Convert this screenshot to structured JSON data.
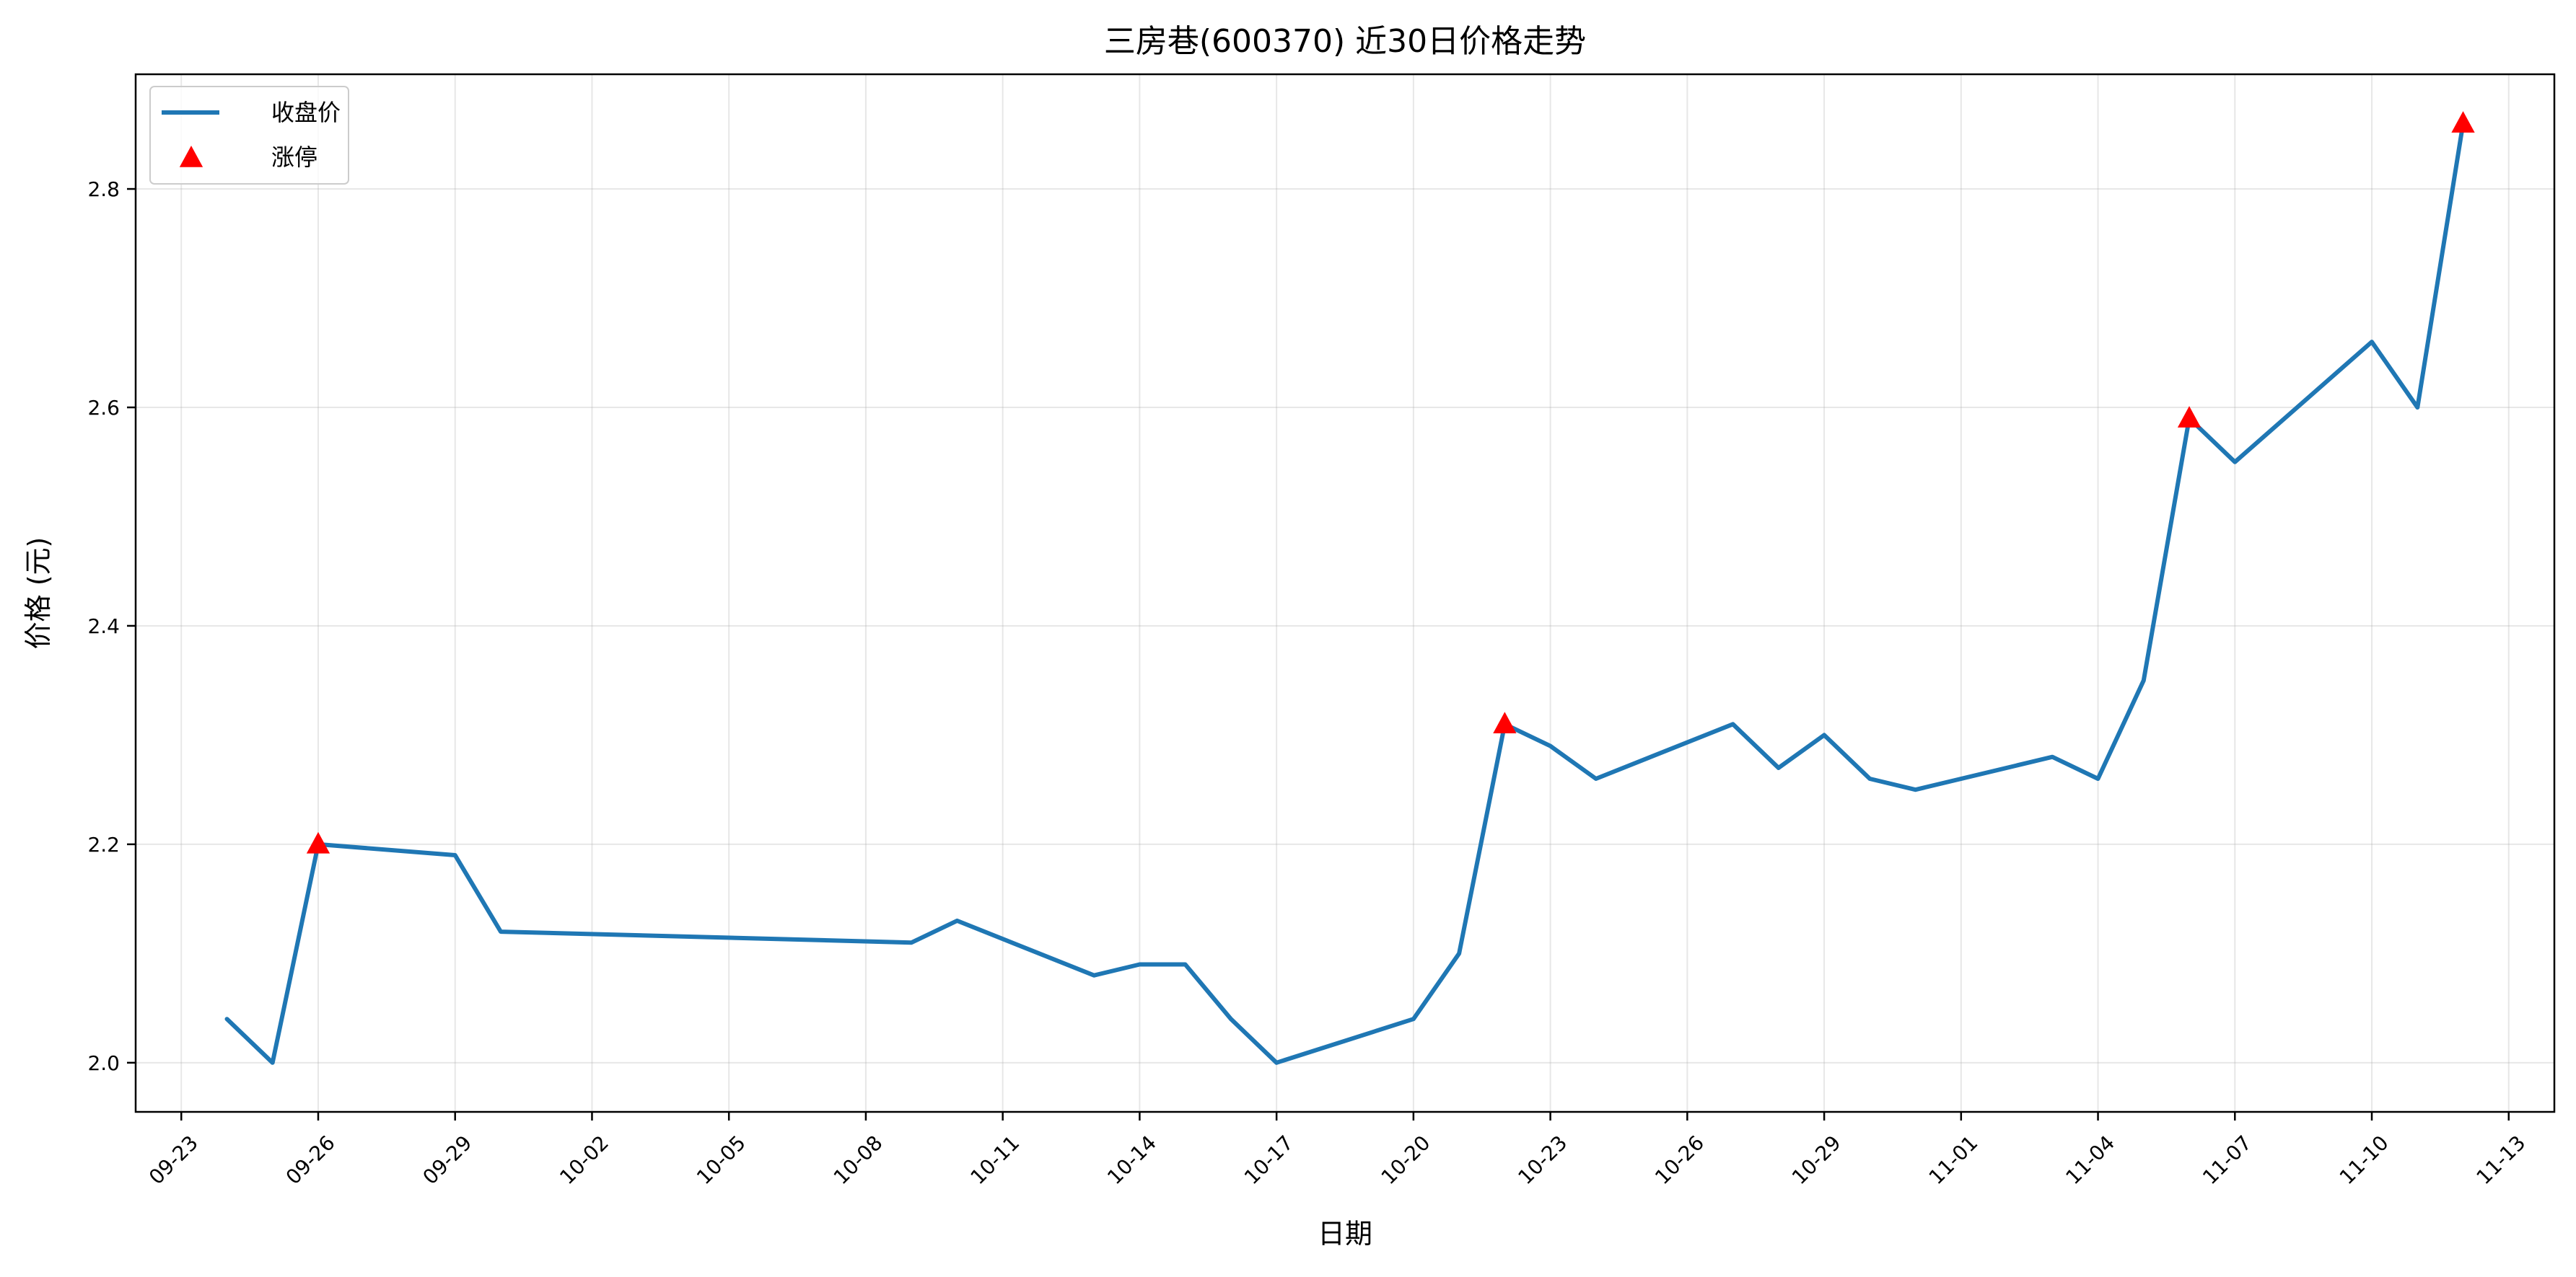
{
  "chart_data": {
    "type": "line",
    "title": "三房巷(600370) 近30日价格走势",
    "xlabel": "日期",
    "ylabel": "价格 (元)",
    "x_ticks": [
      "09-23",
      "09-26",
      "09-29",
      "10-02",
      "10-05",
      "10-08",
      "10-11",
      "10-14",
      "10-17",
      "10-20",
      "10-23",
      "10-26",
      "10-29",
      "11-01",
      "11-04",
      "11-07",
      "11-10",
      "11-13"
    ],
    "y_ticks": [
      "2.0",
      "2.2",
      "2.4",
      "2.6",
      "2.8"
    ],
    "ylim": [
      1.955,
      2.905
    ],
    "xlim": [
      "09-22",
      "11-14"
    ],
    "grid": true,
    "legend_position": "top-left",
    "series": [
      {
        "name": "收盘价",
        "kind": "line",
        "color": "#1f77b4",
        "points": [
          {
            "x": "09-24",
            "y": 2.04
          },
          {
            "x": "09-25",
            "y": 2.0
          },
          {
            "x": "09-26",
            "y": 2.2
          },
          {
            "x": "09-29",
            "y": 2.19
          },
          {
            "x": "09-30",
            "y": 2.12
          },
          {
            "x": "10-09",
            "y": 2.11
          },
          {
            "x": "10-10",
            "y": 2.13
          },
          {
            "x": "10-13",
            "y": 2.08
          },
          {
            "x": "10-14",
            "y": 2.09
          },
          {
            "x": "10-15",
            "y": 2.09
          },
          {
            "x": "10-16",
            "y": 2.04
          },
          {
            "x": "10-17",
            "y": 2.0
          },
          {
            "x": "10-20",
            "y": 2.04
          },
          {
            "x": "10-21",
            "y": 2.1
          },
          {
            "x": "10-22",
            "y": 2.31
          },
          {
            "x": "10-23",
            "y": 2.29
          },
          {
            "x": "10-24",
            "y": 2.26
          },
          {
            "x": "10-27",
            "y": 2.31
          },
          {
            "x": "10-28",
            "y": 2.27
          },
          {
            "x": "10-29",
            "y": 2.3
          },
          {
            "x": "10-30",
            "y": 2.26
          },
          {
            "x": "10-31",
            "y": 2.25
          },
          {
            "x": "11-03",
            "y": 2.28
          },
          {
            "x": "11-04",
            "y": 2.26
          },
          {
            "x": "11-05",
            "y": 2.35
          },
          {
            "x": "11-06",
            "y": 2.59
          },
          {
            "x": "11-07",
            "y": 2.55
          },
          {
            "x": "11-10",
            "y": 2.66
          },
          {
            "x": "11-11",
            "y": 2.6
          },
          {
            "x": "11-12",
            "y": 2.86
          }
        ]
      },
      {
        "name": "涨停",
        "kind": "marker",
        "color": "#ff0000",
        "marker": "triangle-up",
        "points": [
          {
            "x": "09-26",
            "y": 2.2
          },
          {
            "x": "10-22",
            "y": 2.31
          },
          {
            "x": "11-06",
            "y": 2.59
          },
          {
            "x": "11-12",
            "y": 2.86
          }
        ]
      }
    ]
  }
}
